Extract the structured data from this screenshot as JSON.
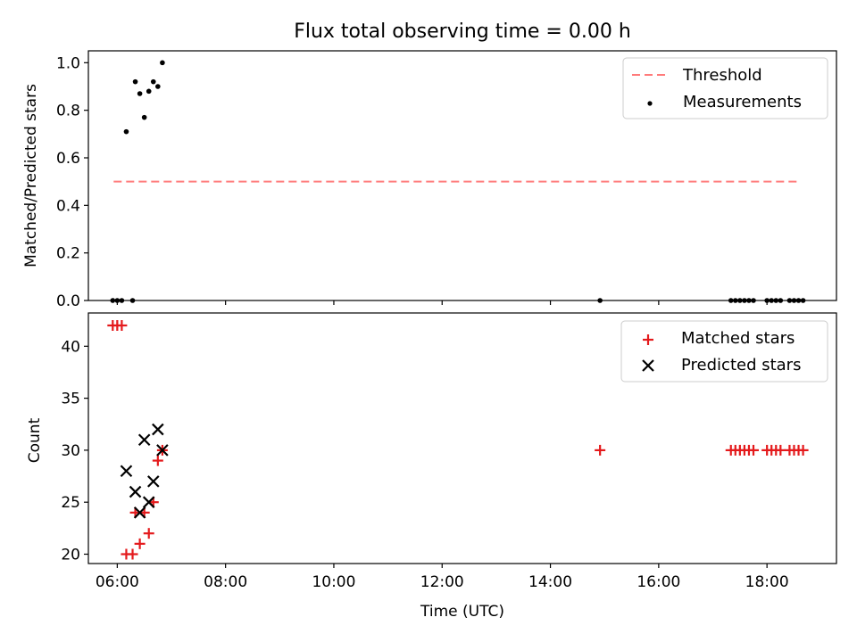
{
  "figure_title": "Flux total observing time = 0.00 h",
  "colors": {
    "threshold": "#ff7b7b",
    "measurement": "#000000",
    "matched": "#e41a1c",
    "predicted": "#000000",
    "axes": "#000000"
  },
  "chart_data": [
    {
      "type": "scatter",
      "panel": "top",
      "xlabel": "",
      "ylabel": "Matched/Predicted stars",
      "xlim": [
        "05:28",
        "19:17"
      ],
      "ylim": [
        0.0,
        1.05
      ],
      "yticks": [
        "0.0",
        "0.2",
        "0.4",
        "0.6",
        "0.8",
        "1.0"
      ],
      "grid": false,
      "legend_position": "top-right",
      "series": [
        {
          "name": "Threshold",
          "kind": "dashed-line",
          "points": [
            {
              "x": "05:56",
              "y": 0.5
            },
            {
              "x": "18:35",
              "y": 0.5
            }
          ]
        },
        {
          "name": "Measurements",
          "kind": "dots",
          "points": [
            {
              "x": "05:55",
              "y": 0.0
            },
            {
              "x": "06:00",
              "y": 0.0
            },
            {
              "x": "06:05",
              "y": 0.0
            },
            {
              "x": "06:10",
              "y": 0.71
            },
            {
              "x": "06:17",
              "y": 0.0
            },
            {
              "x": "06:20",
              "y": 0.92
            },
            {
              "x": "06:25",
              "y": 0.87
            },
            {
              "x": "06:30",
              "y": 0.77
            },
            {
              "x": "06:35",
              "y": 0.88
            },
            {
              "x": "06:40",
              "y": 0.92
            },
            {
              "x": "06:45",
              "y": 0.9
            },
            {
              "x": "06:50",
              "y": 1.0
            },
            {
              "x": "14:55",
              "y": 0.0
            },
            {
              "x": "17:20",
              "y": 0.0
            },
            {
              "x": "17:25",
              "y": 0.0
            },
            {
              "x": "17:30",
              "y": 0.0
            },
            {
              "x": "17:35",
              "y": 0.0
            },
            {
              "x": "17:40",
              "y": 0.0
            },
            {
              "x": "17:45",
              "y": 0.0
            },
            {
              "x": "18:00",
              "y": 0.0
            },
            {
              "x": "18:05",
              "y": 0.0
            },
            {
              "x": "18:10",
              "y": 0.0
            },
            {
              "x": "18:15",
              "y": 0.0
            },
            {
              "x": "18:25",
              "y": 0.0
            },
            {
              "x": "18:30",
              "y": 0.0
            },
            {
              "x": "18:35",
              "y": 0.0
            },
            {
              "x": "18:40",
              "y": 0.0
            }
          ]
        }
      ]
    },
    {
      "type": "scatter",
      "panel": "bottom",
      "xlabel": "Time (UTC)",
      "ylabel": "Count",
      "xlim": [
        "05:28",
        "19:17"
      ],
      "ylim": [
        19.1,
        43.2
      ],
      "xticks": [
        "06:00",
        "08:00",
        "10:00",
        "12:00",
        "14:00",
        "16:00",
        "18:00"
      ],
      "yticks": [
        "20",
        "25",
        "30",
        "35",
        "40"
      ],
      "grid": false,
      "legend_position": "top-right",
      "series": [
        {
          "name": "Matched stars",
          "marker": "plus",
          "points": [
            {
              "x": "05:55",
              "y": 42
            },
            {
              "x": "06:00",
              "y": 42
            },
            {
              "x": "06:05",
              "y": 42
            },
            {
              "x": "06:10",
              "y": 20
            },
            {
              "x": "06:17",
              "y": 20
            },
            {
              "x": "06:20",
              "y": 24
            },
            {
              "x": "06:25",
              "y": 21
            },
            {
              "x": "06:30",
              "y": 24
            },
            {
              "x": "06:35",
              "y": 22
            },
            {
              "x": "06:40",
              "y": 25
            },
            {
              "x": "06:45",
              "y": 29
            },
            {
              "x": "06:50",
              "y": 30
            },
            {
              "x": "14:55",
              "y": 30
            },
            {
              "x": "17:20",
              "y": 30
            },
            {
              "x": "17:25",
              "y": 30
            },
            {
              "x": "17:30",
              "y": 30
            },
            {
              "x": "17:35",
              "y": 30
            },
            {
              "x": "17:40",
              "y": 30
            },
            {
              "x": "17:45",
              "y": 30
            },
            {
              "x": "18:00",
              "y": 30
            },
            {
              "x": "18:05",
              "y": 30
            },
            {
              "x": "18:10",
              "y": 30
            },
            {
              "x": "18:15",
              "y": 30
            },
            {
              "x": "18:25",
              "y": 30
            },
            {
              "x": "18:30",
              "y": 30
            },
            {
              "x": "18:35",
              "y": 30
            },
            {
              "x": "18:40",
              "y": 30
            }
          ]
        },
        {
          "name": "Predicted stars",
          "marker": "x",
          "points": [
            {
              "x": "06:10",
              "y": 28
            },
            {
              "x": "06:20",
              "y": 26
            },
            {
              "x": "06:25",
              "y": 24
            },
            {
              "x": "06:30",
              "y": 31
            },
            {
              "x": "06:35",
              "y": 25
            },
            {
              "x": "06:40",
              "y": 27
            },
            {
              "x": "06:45",
              "y": 32
            },
            {
              "x": "06:50",
              "y": 30
            }
          ]
        }
      ]
    }
  ]
}
